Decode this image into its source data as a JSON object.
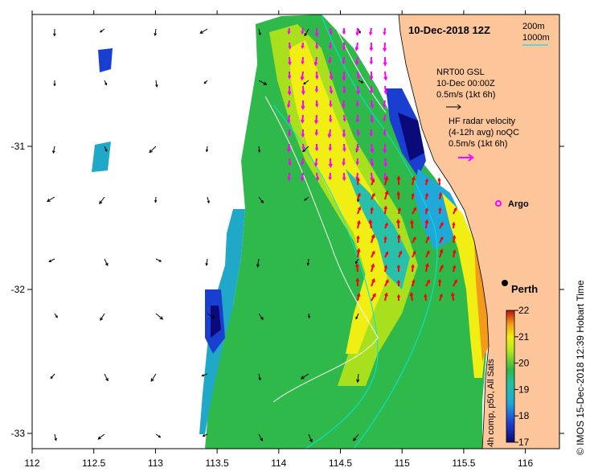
{
  "title": "10-Dec-2018 12Z",
  "depth_legend": {
    "line1": "200m",
    "line2": "1000m",
    "color1": "#00e5e5",
    "color2": "#2e8b57"
  },
  "current_legend": {
    "line1": "NRT00 GSL",
    "line2": "10-Dec 00:00Z",
    "line3": "0.5m/s (1kt 6h)"
  },
  "radar_legend": {
    "line1": "HF radar velocity",
    "line2": "(4-12h avg) noQC",
    "line3": "0.5m/s (1kt 6h)",
    "color": "#ff00ff"
  },
  "argo_label": "Argo",
  "city_label": "Perth",
  "colorbar": {
    "min": 17,
    "max": 22,
    "ticks": [
      "17",
      "18",
      "19",
      "20",
      "21",
      "22"
    ],
    "label": "4h comp, p50, All Sats"
  },
  "credit": "© IMOS 15-Dec-2018 12:39 Hobart Time",
  "x_axis": {
    "ticks": [
      "112",
      "112.5",
      "113",
      "113.5",
      "114",
      "114.5",
      "115",
      "115.5",
      "116"
    ]
  },
  "y_axis": {
    "ticks": [
      "-31",
      "-32",
      "-33"
    ]
  },
  "colors": {
    "land": "#fdc59a",
    "frame": "#000000",
    "arrow_black": "#000000",
    "arrow_red": "#ff0000"
  }
}
